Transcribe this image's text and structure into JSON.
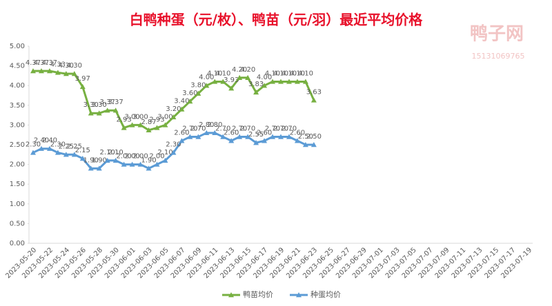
{
  "chart_data": {
    "type": "line",
    "title": "白鸭种蛋（元/枚）、鸭苗（元/羽）最近平均价格",
    "watermark": [
      "鸭子网",
      "15131069765"
    ],
    "categories": [
      "2023-05-20",
      null,
      "2023-05-22",
      null,
      "2023-05-24",
      null,
      "2023-05-26",
      null,
      "2023-05-28",
      null,
      "2023-05-30",
      null,
      "2023-06-01",
      null,
      "2023-06-03",
      null,
      "2023-06-05",
      null,
      "2023-06-07",
      null,
      "2023-06-09",
      null,
      "2023-06-11",
      null,
      "2023-06-13",
      null,
      "2023-06-15",
      null,
      "2023-06-17",
      null,
      "2023-06-19",
      null,
      "2023-06-21",
      null,
      "2023-06-23",
      null,
      "2023-06-25",
      null,
      "2023-06-27",
      null,
      "2023-06-29",
      null,
      "2023-07-01",
      null,
      "2023-07-03",
      null,
      "2023-07-05",
      null,
      "2023-07-07",
      null,
      "2023-07-09",
      null,
      "2023-07-11",
      null,
      "2023-07-13",
      null,
      "2023-07-15",
      null,
      "2023-07-17",
      null,
      "2023-07-19"
    ],
    "series": [
      {
        "name": "鸭苗均价",
        "color": "#77b041",
        "values": [
          4.37,
          4.37,
          4.37,
          4.33,
          4.3,
          4.3,
          3.97,
          3.3,
          3.3,
          3.37,
          3.37,
          2.93,
          3.0,
          3.0,
          2.87,
          2.93,
          3.0,
          3.2,
          3.4,
          3.6,
          3.8,
          4.0,
          4.1,
          4.1,
          3.93,
          4.2,
          4.2,
          3.83,
          4.0,
          4.1,
          4.1,
          4.1,
          4.1,
          4.1,
          3.63,
          null,
          null,
          null,
          null,
          null,
          null,
          null,
          null,
          null,
          null,
          null,
          null,
          null,
          null,
          null,
          null,
          null,
          null,
          null,
          null,
          null,
          null,
          null,
          null,
          null,
          null
        ],
        "value_labels": [
          "4.37",
          "4.37",
          "4.37",
          "4.33",
          "4.30",
          "4.30",
          "3.97",
          "3.30",
          "3.30",
          "3.37",
          "3.37",
          "2.93",
          "3.00",
          "3.00",
          "2.87",
          "2.93",
          "3.00",
          "3.20",
          "3.40",
          "3.60",
          "3.80",
          "4.00",
          "4.10",
          "4.10",
          "3.93",
          "4.20",
          "4.20",
          "3.83",
          "4.00",
          "4.10",
          "4.10",
          "4.10",
          "4.10",
          "4.10",
          "3.63",
          null,
          null,
          null,
          null,
          null,
          null,
          null,
          null,
          null,
          null,
          null,
          null,
          null,
          null,
          null,
          null,
          null,
          null,
          null,
          null,
          null,
          null,
          null,
          null,
          null,
          null
        ]
      },
      {
        "name": "种蛋均价",
        "color": "#5b9bd5",
        "values": [
          2.3,
          2.4,
          2.4,
          2.3,
          2.25,
          2.25,
          2.15,
          1.9,
          1.9,
          2.1,
          2.1,
          2.0,
          2.0,
          2.0,
          1.9,
          2.0,
          2.1,
          2.3,
          2.6,
          2.7,
          2.7,
          2.8,
          2.8,
          2.7,
          2.6,
          2.7,
          2.7,
          2.55,
          2.6,
          2.7,
          2.7,
          2.7,
          2.6,
          2.5,
          2.5,
          null,
          null,
          null,
          null,
          null,
          null,
          null,
          null,
          null,
          null,
          null,
          null,
          null,
          null,
          null,
          null,
          null,
          null,
          null,
          null,
          null,
          null,
          null,
          null,
          null,
          null
        ],
        "value_labels": [
          "2.30",
          "2.40",
          "2.40",
          "2.30",
          "2.25",
          "2.25",
          "2.15",
          "1.90",
          "1.90",
          "2.10",
          "2.10",
          "2.00",
          "2.00",
          "2.00",
          "1.90",
          "2.00",
          "2.10",
          "2.30",
          "2.60",
          "2.70",
          "2.70",
          "2.80",
          "2.80",
          "2.70",
          "2.60",
          "2.70",
          "2.70",
          "2.55",
          "2.60",
          "2.70",
          "2.70",
          "2.70",
          "2.60",
          "2.50",
          "2.50",
          null,
          null,
          null,
          null,
          null,
          null,
          null,
          null,
          null,
          null,
          null,
          null,
          null,
          null,
          null,
          null,
          null,
          null,
          null,
          null,
          null,
          null,
          null,
          null,
          null,
          null
        ]
      }
    ],
    "ylim": [
      0,
      5
    ],
    "yticks": [
      {
        "value": 0,
        "label": "0.00"
      },
      {
        "value": 0.5,
        "label": "0.50"
      },
      {
        "value": 1,
        "label": "1.00"
      },
      {
        "value": 1.5,
        "label": "1.50"
      },
      {
        "value": 2,
        "label": "2.00"
      },
      {
        "value": 2.5,
        "label": "2.50"
      },
      {
        "value": 3,
        "label": "3.00"
      },
      {
        "value": 3.5,
        "label": "3.50"
      },
      {
        "value": 4,
        "label": "4.00"
      },
      {
        "value": 4.5,
        "label": "4.50"
      },
      {
        "value": 5,
        "label": "5.00"
      }
    ],
    "legend": "bottom"
  }
}
